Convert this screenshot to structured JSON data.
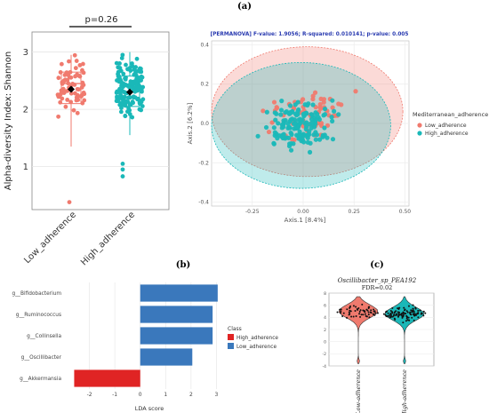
{
  "panel_labels": {
    "a": "(a)",
    "b": "(b)",
    "c": "(c)"
  },
  "colors": {
    "low": "#f07a6e",
    "high": "#1ab8b8",
    "bar_high": "#e02424",
    "bar_low": "#3a78bc"
  },
  "chart_data": [
    {
      "id": "alpha",
      "type": "scatter",
      "title": "",
      "xlabel": "",
      "ylabel": "Alpha-diversity Index: Shannon",
      "categories": [
        "Low_adherence",
        "High_adherence"
      ],
      "ylim": [
        0.25,
        3.35
      ],
      "yticks": [
        1,
        2,
        3
      ],
      "pvalue_label": "p=0.26",
      "box": [
        {
          "name": "Low_adherence",
          "q1": 2.1,
          "median": 2.45,
          "q3": 2.65,
          "whisker_low": 1.35,
          "whisker_high": 2.95,
          "mean": 2.35
        },
        {
          "name": "High_adherence",
          "q1": 2.05,
          "median": 2.4,
          "q3": 2.58,
          "whisker_low": 1.55,
          "whisker_high": 3.0,
          "mean": 2.3
        }
      ],
      "outliers": [
        {
          "group": "Low_adherence",
          "y": 0.38
        },
        {
          "group": "High_adherence",
          "y": 0.95
        },
        {
          "group": "High_adherence",
          "y": 0.83
        },
        {
          "group": "High_adherence",
          "y": 1.05
        }
      ],
      "grid": true,
      "point_count": {
        "Low_adherence": 70,
        "High_adherence": 150
      }
    },
    {
      "id": "pcoa",
      "type": "scatter",
      "title": "[PERMANOVA] F-value: 1.9056; R-squared: 0.010141; p-value: 0.005",
      "xlabel": "Axis.1   [8.4%]",
      "ylabel": "Axis.2   [6.2%]",
      "xlim": [
        -0.45,
        0.52
      ],
      "ylim": [
        -0.42,
        0.42
      ],
      "xticks": [
        -0.25,
        0.0,
        0.25,
        0.5
      ],
      "xtick_labels": [
        "-0.25",
        "0.00",
        "0.25",
        "0.50"
      ],
      "yticks": [
        -0.4,
        -0.2,
        0.0,
        0.2,
        0.4
      ],
      "ytick_labels": [
        "-0.4",
        "-0.2",
        "0.0",
        "0.2",
        "0.4"
      ],
      "legend": {
        "title": "Mediterranean_adherence",
        "entries": [
          "Low_adherence",
          "High_adherence"
        ],
        "placement": "right"
      },
      "ellipses": [
        {
          "name": "Low_adherence",
          "center": [
            0.02,
            0.06
          ],
          "radius": [
            0.47,
            0.33
          ]
        },
        {
          "name": "High_adherence",
          "center": [
            -0.01,
            -0.01
          ],
          "radius": [
            0.44,
            0.32
          ]
        }
      ],
      "grid": true,
      "point_count": {
        "Low_adherence": 70,
        "High_adherence": 150
      }
    },
    {
      "id": "lefse",
      "type": "bar",
      "title": "",
      "xlabel": "LDA score",
      "ylabel": "",
      "categories": [
        "g__Bifidobacterium",
        "g__Ruminococcus",
        "g__Collinsella",
        "g__Oscillibacter",
        "g__Akkermansia"
      ],
      "values": [
        3.05,
        2.85,
        2.85,
        2.05,
        -2.6
      ],
      "class": [
        "Low_adherence",
        "Low_adherence",
        "Low_adherence",
        "Low_adherence",
        "High_adherence"
      ],
      "xlim": [
        -3.0,
        3.3
      ],
      "xticks": [
        -2,
        -1,
        0,
        1,
        2,
        3
      ],
      "legend": {
        "title": "Class",
        "entries": [
          "High_adherence",
          "Low_adherence"
        ],
        "placement": "right"
      },
      "grid": true
    },
    {
      "id": "violin",
      "type": "scatter",
      "title": "Oscillibacter_sp_PEA192",
      "subtitle": "FDR=0.02",
      "xlabel": "",
      "ylabel": "",
      "categories": [
        "Low-adherence",
        "High-adherence"
      ],
      "ylim": [
        -4,
        8
      ],
      "yticks": [
        -4,
        -2,
        0,
        2,
        4,
        6,
        8
      ],
      "medians": [
        5.0,
        4.6
      ],
      "point_count": {
        "Low-adherence": 60,
        "High-adherence": 110
      }
    }
  ]
}
